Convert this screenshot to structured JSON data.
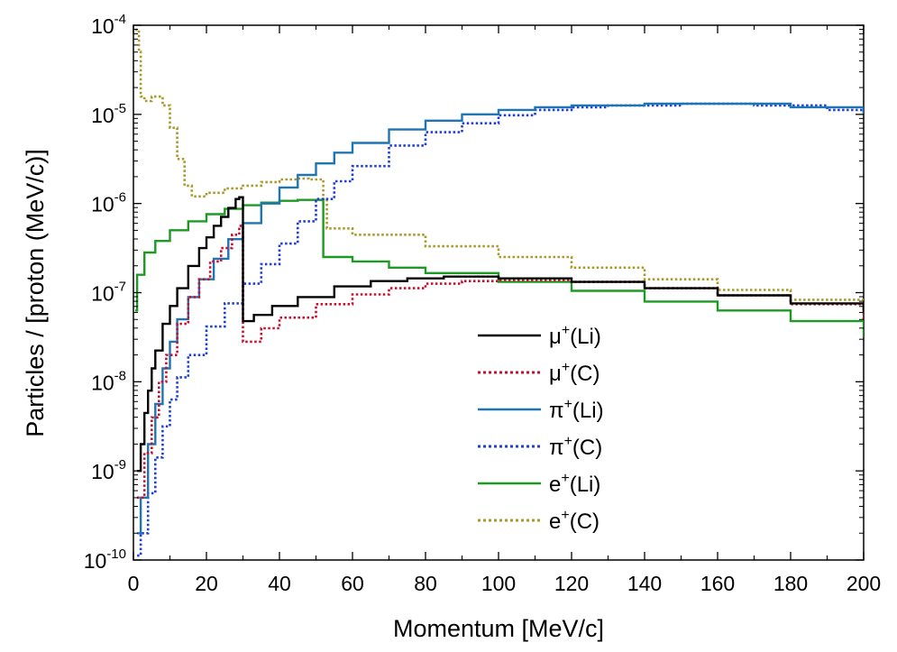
{
  "chart_data": {
    "type": "line",
    "xlabel": "Momentum [MeV/c]",
    "ylabel": "Particles / [proton (MeV/c)]",
    "xlim": [
      0,
      200
    ],
    "ylim_exp": [
      -10,
      -4
    ],
    "yscale": "log",
    "x_ticks": [
      0,
      20,
      40,
      60,
      80,
      100,
      120,
      140,
      160,
      180,
      200
    ],
    "y_ticks": [
      {
        "exp": -10,
        "label": "10",
        "sup": "-10"
      },
      {
        "exp": -9,
        "label": "10",
        "sup": "-9"
      },
      {
        "exp": -8,
        "label": "10",
        "sup": "-8"
      },
      {
        "exp": -7,
        "label": "10",
        "sup": "-7"
      },
      {
        "exp": -6,
        "label": "10",
        "sup": "-6"
      },
      {
        "exp": -5,
        "label": "10",
        "sup": "-5"
      },
      {
        "exp": -4,
        "label": "10",
        "sup": "-4"
      }
    ],
    "legend_position": "center-right",
    "series": [
      {
        "name": "μ+(Li)",
        "base": "μ",
        "sup": "+",
        "target": "(Li)",
        "color": "#000000",
        "dash": "solid",
        "points": [
          [
            1,
            -9
          ],
          [
            2,
            -8.7
          ],
          [
            3,
            -8.35
          ],
          [
            4,
            -8.1
          ],
          [
            5,
            -7.85
          ],
          [
            6,
            -7.65
          ],
          [
            8,
            -7.35
          ],
          [
            10,
            -7.15
          ],
          [
            12,
            -6.95
          ],
          [
            15,
            -6.7
          ],
          [
            18,
            -6.5
          ],
          [
            20,
            -6.38
          ],
          [
            22,
            -6.25
          ],
          [
            24,
            -6.15
          ],
          [
            26,
            -6.05
          ],
          [
            28,
            -5.95
          ],
          [
            29,
            -5.93
          ],
          [
            30,
            -6.05
          ],
          [
            30,
            -7.32
          ],
          [
            33,
            -7.25
          ],
          [
            38,
            -7.15
          ],
          [
            45,
            -7.05
          ],
          [
            55,
            -6.93
          ],
          [
            65,
            -6.87
          ],
          [
            75,
            -6.84
          ],
          [
            85,
            -6.82
          ],
          [
            100,
            -6.84
          ],
          [
            120,
            -6.88
          ],
          [
            140,
            -6.95
          ],
          [
            160,
            -7.03
          ],
          [
            180,
            -7.12
          ],
          [
            200,
            -7.22
          ]
        ]
      },
      {
        "name": "μ+(C)",
        "base": "μ",
        "sup": "+",
        "target": "(C)",
        "color": "#c8102e",
        "dash": "dotted",
        "points": [
          [
            1,
            -9.3
          ],
          [
            3,
            -8.8
          ],
          [
            5,
            -8.4
          ],
          [
            7,
            -8.0
          ],
          [
            9,
            -7.7
          ],
          [
            12,
            -7.35
          ],
          [
            15,
            -7.05
          ],
          [
            18,
            -6.85
          ],
          [
            21,
            -6.65
          ],
          [
            24,
            -6.5
          ],
          [
            27,
            -6.35
          ],
          [
            29,
            -6.25
          ],
          [
            30,
            -6.35
          ],
          [
            30,
            -7.55
          ],
          [
            32,
            -7.55
          ],
          [
            35,
            -7.4
          ],
          [
            40,
            -7.28
          ],
          [
            50,
            -7.13
          ],
          [
            60,
            -7.02
          ],
          [
            70,
            -6.95
          ],
          [
            80,
            -6.9
          ],
          [
            90,
            -6.87
          ],
          [
            100,
            -6.86
          ],
          [
            120,
            -6.88
          ],
          [
            140,
            -6.95
          ],
          [
            160,
            -7.03
          ],
          [
            180,
            -7.13
          ],
          [
            200,
            -7.3
          ]
        ]
      },
      {
        "name": "π+(Li)",
        "base": "π",
        "sup": "+",
        "target": "(Li)",
        "color": "#1f74b3",
        "dash": "solid",
        "points": [
          [
            1,
            -9.7
          ],
          [
            2,
            -9.3
          ],
          [
            4,
            -8.7
          ],
          [
            6,
            -8.25
          ],
          [
            8,
            -7.85
          ],
          [
            10,
            -7.55
          ],
          [
            12,
            -7.3
          ],
          [
            15,
            -7.05
          ],
          [
            18,
            -6.85
          ],
          [
            22,
            -6.62
          ],
          [
            26,
            -6.4
          ],
          [
            30,
            -6.22
          ],
          [
            35,
            -6.0
          ],
          [
            40,
            -5.82
          ],
          [
            45,
            -5.68
          ],
          [
            50,
            -5.55
          ],
          [
            55,
            -5.43
          ],
          [
            60,
            -5.32
          ],
          [
            70,
            -5.17
          ],
          [
            80,
            -5.07
          ],
          [
            90,
            -5.0
          ],
          [
            100,
            -4.95
          ],
          [
            110,
            -4.92
          ],
          [
            120,
            -4.9
          ],
          [
            140,
            -4.88
          ],
          [
            160,
            -4.88
          ],
          [
            180,
            -4.92
          ],
          [
            200,
            -5.0
          ]
        ]
      },
      {
        "name": "π+(C)",
        "base": "π",
        "sup": "+",
        "target": "(C)",
        "color": "#1f3fd8",
        "dash": "dotted",
        "points": [
          [
            1,
            -9.95
          ],
          [
            2,
            -9.7
          ],
          [
            4,
            -9.25
          ],
          [
            6,
            -8.85
          ],
          [
            8,
            -8.5
          ],
          [
            10,
            -8.2
          ],
          [
            12,
            -7.95
          ],
          [
            15,
            -7.7
          ],
          [
            20,
            -7.38
          ],
          [
            25,
            -7.12
          ],
          [
            30,
            -6.9
          ],
          [
            35,
            -6.68
          ],
          [
            40,
            -6.45
          ],
          [
            45,
            -6.2
          ],
          [
            50,
            -5.95
          ],
          [
            55,
            -5.75
          ],
          [
            60,
            -5.58
          ],
          [
            70,
            -5.35
          ],
          [
            80,
            -5.2
          ],
          [
            90,
            -5.1
          ],
          [
            100,
            -5.01
          ],
          [
            110,
            -4.95
          ],
          [
            120,
            -4.92
          ],
          [
            130,
            -4.9
          ],
          [
            150,
            -4.88
          ],
          [
            170,
            -4.9
          ],
          [
            190,
            -4.95
          ],
          [
            200,
            -5.0
          ]
        ]
      },
      {
        "name": "e+(Li)",
        "base": "e",
        "sup": "+",
        "target": "(Li)",
        "color": "#1d9a24",
        "dash": "solid",
        "points": [
          [
            0.5,
            -7.2
          ],
          [
            1,
            -6.8
          ],
          [
            3,
            -6.55
          ],
          [
            6,
            -6.42
          ],
          [
            10,
            -6.3
          ],
          [
            15,
            -6.2
          ],
          [
            20,
            -6.12
          ],
          [
            25,
            -6.06
          ],
          [
            30,
            -6.02
          ],
          [
            35,
            -5.99
          ],
          [
            40,
            -5.97
          ],
          [
            45,
            -5.96
          ],
          [
            51,
            -5.96
          ],
          [
            52,
            -6.45
          ],
          [
            52,
            -6.6
          ],
          [
            60,
            -6.65
          ],
          [
            70,
            -6.72
          ],
          [
            80,
            -6.78
          ],
          [
            100,
            -6.88
          ],
          [
            120,
            -6.98
          ],
          [
            140,
            -7.1
          ],
          [
            160,
            -7.2
          ],
          [
            180,
            -7.32
          ],
          [
            200,
            -7.5
          ]
        ]
      },
      {
        "name": "e+(C)",
        "base": "e",
        "sup": "+",
        "target": "(C)",
        "color": "#a99a28",
        "dash": "dotted",
        "points": [
          [
            0.5,
            -4.05
          ],
          [
            1.5,
            -4.3
          ],
          [
            2,
            -4.8
          ],
          [
            3,
            -4.85
          ],
          [
            5,
            -4.8
          ],
          [
            8,
            -4.9
          ],
          [
            10,
            -5.15
          ],
          [
            12,
            -5.5
          ],
          [
            14,
            -5.8
          ],
          [
            16,
            -5.92
          ],
          [
            20,
            -5.88
          ],
          [
            25,
            -5.83
          ],
          [
            30,
            -5.8
          ],
          [
            35,
            -5.76
          ],
          [
            40,
            -5.73
          ],
          [
            45,
            -5.72
          ],
          [
            48,
            -5.73
          ],
          [
            52,
            -5.95
          ],
          [
            53,
            -6.28
          ],
          [
            60,
            -6.35
          ],
          [
            80,
            -6.48
          ],
          [
            100,
            -6.6
          ],
          [
            120,
            -6.72
          ],
          [
            140,
            -6.85
          ],
          [
            160,
            -6.97
          ],
          [
            180,
            -7.08
          ],
          [
            200,
            -7.2
          ]
        ]
      }
    ]
  }
}
